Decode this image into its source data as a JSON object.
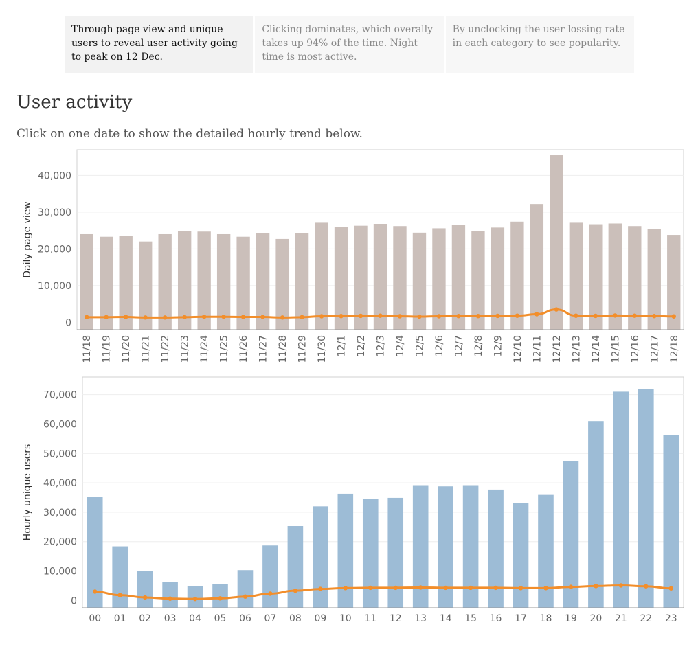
{
  "tabs": [
    {
      "label": "Through page view and unique users to reveal user activity going to peak on 12 Dec.",
      "active": true
    },
    {
      "label": "Clicking dominates, which overally takes up 94% of the time. Night time is most active.",
      "active": false
    },
    {
      "label": "By unclocking the user lossing rate in each category to see popularity.",
      "active": false
    }
  ],
  "title": "User activity",
  "subtitle": "Click on one date to show the detailed hourly trend below.",
  "colors": {
    "daily_bar": "#cbbfba",
    "hourly_bar": "#9dbcd6",
    "line": "#f28e2b",
    "axis": "#aaaaaa",
    "grid": "#eeeeee",
    "tick": "#666666"
  },
  "chart_data": [
    {
      "type": "bar",
      "ylabel": "Daily page view",
      "categories": [
        "11/18",
        "11/19",
        "11/20",
        "11/21",
        "11/22",
        "11/23",
        "11/24",
        "11/25",
        "11/26",
        "11/27",
        "11/28",
        "11/29",
        "11/30",
        "12/1",
        "12/2",
        "12/3",
        "12/4",
        "12/5",
        "12/6",
        "12/7",
        "12/8",
        "12/9",
        "12/10",
        "12/11",
        "12/12",
        "12/13",
        "12/14",
        "12/15",
        "12/16",
        "12/17",
        "12/18"
      ],
      "series": [
        {
          "type": "bar",
          "values": [
            24000,
            23300,
            23500,
            22000,
            24000,
            24900,
            24700,
            24000,
            23300,
            24200,
            22700,
            24200,
            27100,
            26000,
            26300,
            26800,
            26200,
            24400,
            25600,
            26500,
            24900,
            25800,
            27400,
            32200,
            45500,
            27100,
            26700,
            26900,
            26200,
            25400,
            23800
          ]
        },
        {
          "type": "line",
          "values": [
            1400,
            1400,
            1450,
            1300,
            1300,
            1400,
            1500,
            1500,
            1450,
            1450,
            1300,
            1400,
            1650,
            1700,
            1750,
            1800,
            1650,
            1550,
            1650,
            1700,
            1700,
            1750,
            1800,
            2200,
            3500,
            1800,
            1750,
            1850,
            1800,
            1700,
            1600
          ]
        }
      ],
      "yticks": [
        "0",
        "10,000",
        "20,000",
        "30,000",
        "40,000"
      ],
      "ylim": [
        -2000,
        47000
      ]
    },
    {
      "type": "bar",
      "ylabel": "Hourly unique users",
      "categories": [
        "00",
        "01",
        "02",
        "03",
        "04",
        "05",
        "06",
        "07",
        "08",
        "09",
        "10",
        "11",
        "12",
        "13",
        "14",
        "15",
        "16",
        "17",
        "18",
        "19",
        "20",
        "21",
        "22",
        "23"
      ],
      "series": [
        {
          "type": "bar",
          "values": [
            35200,
            18400,
            10000,
            6300,
            4800,
            5600,
            10300,
            18700,
            25300,
            32000,
            36300,
            34500,
            34900,
            39200,
            38800,
            39200,
            37700,
            33200,
            35900,
            47300,
            61000,
            71000,
            71800,
            56300
          ]
        },
        {
          "type": "line",
          "values": [
            3000,
            1800,
            1000,
            600,
            500,
            700,
            1300,
            2300,
            3300,
            3900,
            4200,
            4300,
            4300,
            4400,
            4300,
            4300,
            4300,
            4200,
            4200,
            4600,
            4900,
            5100,
            4800,
            4100
          ]
        }
      ],
      "yticks": [
        "0",
        "10,000",
        "20,000",
        "30,000",
        "40,000",
        "50,000",
        "60,000",
        "70,000"
      ],
      "ylim": [
        -2500,
        76000
      ]
    }
  ]
}
